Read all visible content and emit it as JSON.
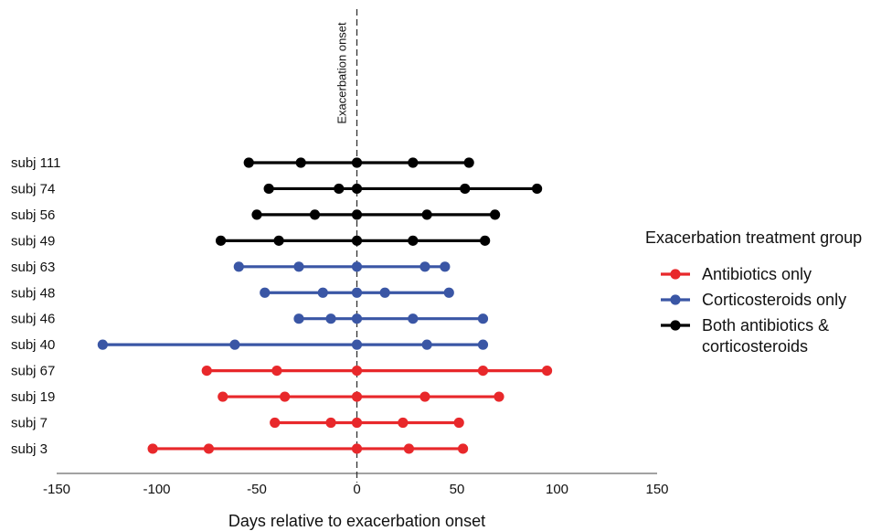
{
  "chart_data": {
    "type": "scatter",
    "xlabel": "Days relative to exacerbation onset",
    "xlim": [
      -150,
      150
    ],
    "xticks": [
      -150,
      -100,
      -50,
      0,
      50,
      100,
      150
    ],
    "reference_line": {
      "x": 0,
      "label": "Exacerbation onset",
      "style": "dashed"
    },
    "legend": {
      "title": "Exacerbation treatment group",
      "placement": "right",
      "entries": [
        {
          "label_lines": [
            "Antibiotics only"
          ],
          "color": "#e8282b"
        },
        {
          "label_lines": [
            "Corticosteroids only"
          ],
          "color": "#3a56a5"
        },
        {
          "label_lines": [
            "Both antibiotics &",
            "corticosteroids"
          ],
          "color": "#000000"
        }
      ]
    },
    "series": [
      {
        "name": "Both antibiotics & corticosteroids",
        "color": "#000000",
        "subjects": [
          {
            "label": "subj 111",
            "x": [
              -54,
              -28,
              0,
              28,
              56
            ]
          },
          {
            "label": "subj 74",
            "x": [
              -44,
              -9,
              0,
              54,
              90
            ]
          },
          {
            "label": "subj 56",
            "x": [
              -50,
              -21,
              0,
              35,
              69
            ]
          },
          {
            "label": "subj 49",
            "x": [
              -68,
              -39,
              0,
              28,
              64
            ]
          }
        ]
      },
      {
        "name": "Corticosteroids only",
        "color": "#3a56a5",
        "subjects": [
          {
            "label": "subj 63",
            "x": [
              -59,
              -29,
              0,
              34,
              44
            ]
          },
          {
            "label": "subj 48",
            "x": [
              -46,
              -17,
              0,
              14,
              46
            ]
          },
          {
            "label": "subj 46",
            "x": [
              -29,
              -13,
              0,
              28,
              63
            ]
          },
          {
            "label": "subj 40",
            "x": [
              -127,
              -61,
              0,
              35,
              63
            ]
          }
        ]
      },
      {
        "name": "Antibiotics only",
        "color": "#e8282b",
        "subjects": [
          {
            "label": "subj 67",
            "x": [
              -75,
              -40,
              0,
              63,
              95
            ]
          },
          {
            "label": "subj 19",
            "x": [
              -67,
              -36,
              0,
              34,
              71
            ]
          },
          {
            "label": "subj 7",
            "x": [
              -41,
              -13,
              0,
              23,
              51
            ]
          },
          {
            "label": "subj 3",
            "x": [
              -102,
              -74,
              0,
              26,
              53
            ]
          }
        ]
      }
    ]
  }
}
